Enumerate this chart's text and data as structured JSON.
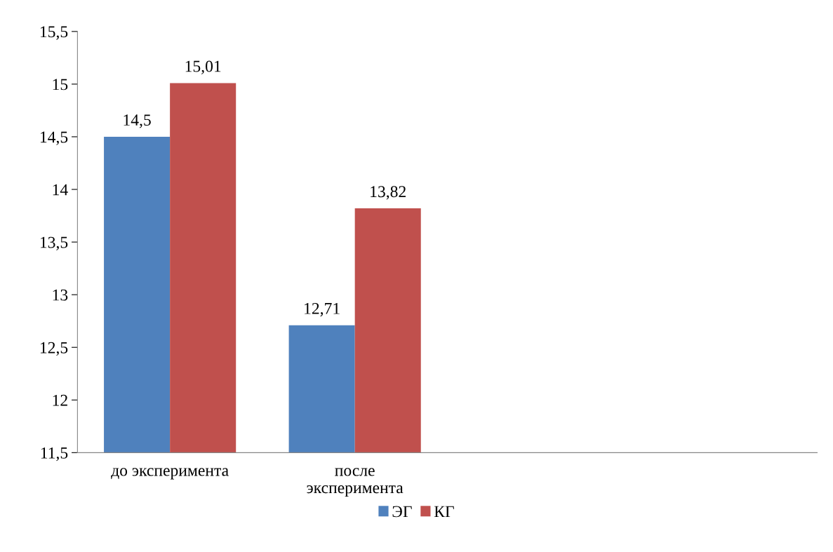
{
  "chart_data": {
    "type": "bar",
    "categories": [
      "до эксперимента",
      "после\nэксперимента",
      null,
      null
    ],
    "series": [
      {
        "name": "ЭГ",
        "color": "#4f81bd",
        "values": [
          14.5,
          12.71,
          null,
          null
        ],
        "value_labels": [
          "14,5",
          "12,71",
          null,
          null
        ]
      },
      {
        "name": "КГ",
        "color": "#c0504d",
        "values": [
          15.01,
          13.82,
          null,
          null
        ],
        "value_labels": [
          "15,01",
          "13,82",
          null,
          null
        ]
      }
    ],
    "ylim": [
      11.5,
      15.5
    ],
    "yticks": [
      {
        "value": 11.5,
        "label": "11,5"
      },
      12,
      {
        "value": 12.5,
        "label": "12,5"
      },
      13,
      {
        "value": 13.5,
        "label": "13,5"
      },
      14,
      {
        "value": 14.5,
        "label": "14,5"
      },
      15,
      {
        "value": 15.5,
        "label": "15,5"
      }
    ],
    "grid": false,
    "legend": "bottom"
  }
}
